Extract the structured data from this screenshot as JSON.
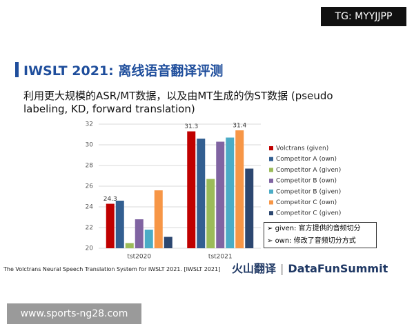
{
  "watermark_top": "TG: MYYJJPP",
  "slide": {
    "title": "IWSLT 2021: 离线语音翻译评测",
    "body": "利用更大规模的ASR/MT数据，以及由MT生成的伪ST数据 (pseudo labeling, KD, forward translation)",
    "notes": [
      "given: 官方提供的音频切分",
      "own: 修改了音频切分方式"
    ],
    "citation": "The Volctrans Neural Speech Translation System for IWSLT 2021. [IWSLT 2021]",
    "logo_left": "火山翻译",
    "logo_right": "DataFunSummit"
  },
  "watermark_bottom": "www.sports-ng28.com",
  "chart_data": {
    "type": "bar",
    "categories": [
      "tst2020",
      "tst2021"
    ],
    "series": [
      {
        "name": "Volctrans (given)",
        "color": "#c00000",
        "values": [
          24.3,
          31.3
        ],
        "value_labels": [
          "24.3",
          "31.3"
        ]
      },
      {
        "name": "Competitor A (own)",
        "color": "#335f91",
        "values": [
          24.6,
          30.6
        ]
      },
      {
        "name": "Competitor A (given)",
        "color": "#9bbb59",
        "values": [
          20.5,
          26.7
        ]
      },
      {
        "name": "Competitor B (own)",
        "color": "#8064a2",
        "values": [
          22.8,
          30.3
        ]
      },
      {
        "name": "Competitor B (given)",
        "color": "#4bacc6",
        "values": [
          21.8,
          30.7
        ]
      },
      {
        "name": "Competitor C (own)",
        "color": "#f79646",
        "values": [
          25.6,
          31.4
        ],
        "value_labels": [
          null,
          "31.4"
        ]
      },
      {
        "name": "Competitor C (given)",
        "color": "#2c4770",
        "values": [
          21.1,
          27.7
        ]
      }
    ],
    "ylim": [
      20,
      32
    ],
    "yticks": [
      20,
      22,
      24,
      26,
      28,
      30,
      32
    ],
    "grid": true,
    "legend": "right"
  }
}
